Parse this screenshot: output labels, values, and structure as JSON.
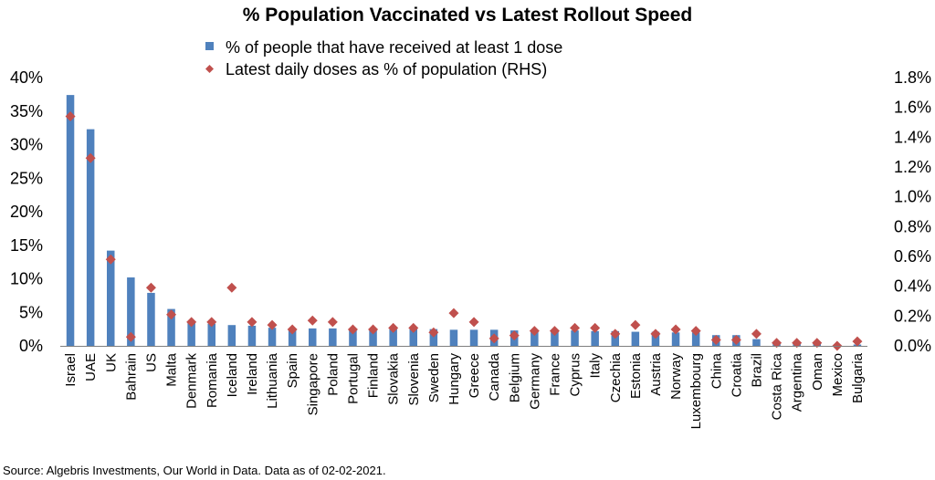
{
  "title": "% Population Vaccinated vs Latest Rollout Speed",
  "source": "Source: Algebris Investments, Our World in Data. Data as of 02-02-2021.",
  "chart_data": {
    "type": "bar",
    "title": "% Population Vaccinated vs Latest Rollout Speed",
    "xlabel": "",
    "ylabel": "",
    "legend_position": "top",
    "grid": false,
    "categories": [
      "Israel",
      "UAE",
      "UK",
      "Bahrain",
      "US",
      "Malta",
      "Denmark",
      "Romania",
      "Iceland",
      "Ireland",
      "Lithuania",
      "Spain",
      "Singapore",
      "Poland",
      "Portugal",
      "Finland",
      "Slovakia",
      "Slovenia",
      "Sweden",
      "Hungary",
      "Greece",
      "Canada",
      "Belgium",
      "Germany",
      "France",
      "Cyprus",
      "Italy",
      "Czechia",
      "Estonia",
      "Austria",
      "Norway",
      "Luxembourg",
      "China",
      "Croatia",
      "Brazil",
      "Costa Rica",
      "Argentina",
      "Oman",
      "Mexico",
      "Bulgaria"
    ],
    "y_ticks": [
      "0%",
      "5%",
      "10%",
      "15%",
      "20%",
      "25%",
      "30%",
      "35%",
      "40%"
    ],
    "y2_ticks": [
      "0.0%",
      "0.2%",
      "0.4%",
      "0.6%",
      "0.8%",
      "1.0%",
      "1.2%",
      "1.4%",
      "1.6%",
      "1.8%"
    ],
    "ylim": [
      0,
      40
    ],
    "y2lim": [
      0,
      1.8
    ],
    "series": [
      {
        "name": "% of people that have received at least 1 dose",
        "type": "bar",
        "axis": "left",
        "color": "#4f81bd",
        "values": [
          37.4,
          32.3,
          14.2,
          10.2,
          7.9,
          5.5,
          3.5,
          3.3,
          3.1,
          3.0,
          2.7,
          2.6,
          2.6,
          2.6,
          2.5,
          2.5,
          2.5,
          2.5,
          2.5,
          2.4,
          2.4,
          2.4,
          2.3,
          2.3,
          2.3,
          2.3,
          2.2,
          2.2,
          2.1,
          2.1,
          2.0,
          2.0,
          1.6,
          1.6,
          1.0,
          0.4,
          0.3,
          0.3,
          0.2,
          0.2
        ]
      },
      {
        "name": "Latest daily doses as % of population (RHS)",
        "type": "scatter",
        "axis": "right",
        "color": "#c0504d",
        "values": [
          1.54,
          1.26,
          0.58,
          0.06,
          0.39,
          0.21,
          0.16,
          0.16,
          0.39,
          0.16,
          0.14,
          0.11,
          0.17,
          0.16,
          0.11,
          0.11,
          0.12,
          0.12,
          0.09,
          0.22,
          0.16,
          0.05,
          0.07,
          0.1,
          0.1,
          0.12,
          0.12,
          0.08,
          0.14,
          0.08,
          0.11,
          0.1,
          0.04,
          0.04,
          0.08,
          0.02,
          0.02,
          0.02,
          0.0,
          0.03
        ]
      }
    ]
  }
}
